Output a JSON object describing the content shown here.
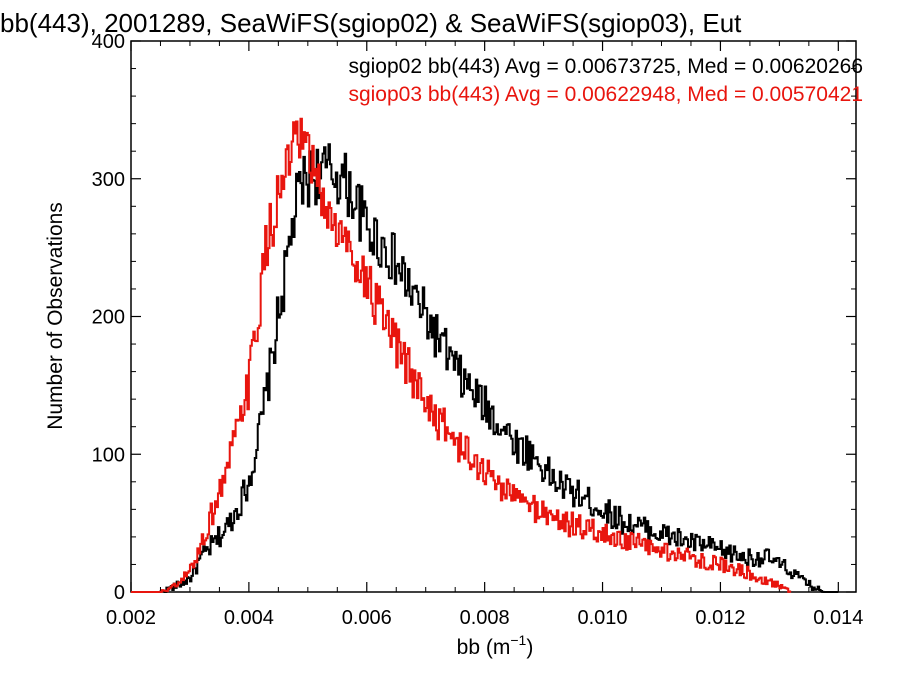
{
  "chart_data": {
    "type": "line",
    "title": "bb(443), 2001289, SeaWiFS(sgiop02) & SeaWiFS(sgiop03), Eut",
    "xlabel_base": "bb (m",
    "xlabel_sup": "−1",
    "xlabel_end": ")",
    "ylabel": "Number of Observations",
    "xlim": [
      0.002,
      0.0143
    ],
    "ylim": [
      0,
      400
    ],
    "x_ticks": [
      "0.002",
      "0.004",
      "0.006",
      "0.008",
      "0.010",
      "0.012",
      "0.014"
    ],
    "y_ticks": [
      "0",
      "100",
      "200",
      "300",
      "400"
    ],
    "grid": false,
    "legend_placement": "top-right",
    "annotations": [
      "sgiop02 bb(443) Avg = 0.00673725, Med = 0.00620266",
      "sgiop03 bb(443) Avg = 0.00622948, Med = 0.00570421"
    ],
    "series": [
      {
        "color": "#000000",
        "x": [
          0.002,
          0.0025,
          0.0028,
          0.003,
          0.0032,
          0.0034,
          0.0036,
          0.0038,
          0.004,
          0.0042,
          0.0044,
          0.0045,
          0.0046,
          0.0047,
          0.0048,
          0.0049,
          0.005,
          0.0052,
          0.0054,
          0.0056,
          0.0058,
          0.006,
          0.0062,
          0.0064,
          0.0066,
          0.0068,
          0.007,
          0.0072,
          0.0074,
          0.0076,
          0.0078,
          0.008,
          0.0082,
          0.0084,
          0.0086,
          0.0088,
          0.009,
          0.0092,
          0.0094,
          0.0096,
          0.0098,
          0.01,
          0.0102,
          0.0104,
          0.0106,
          0.0108,
          0.011,
          0.0112,
          0.0114,
          0.0116,
          0.0118,
          0.012,
          0.0122,
          0.0124,
          0.0126,
          0.0128,
          0.013,
          0.0132,
          0.0134,
          0.0136,
          0.0138,
          0.014
        ],
        "values": [
          0,
          0,
          5,
          10,
          25,
          35,
          45,
          60,
          80,
          120,
          170,
          200,
          225,
          255,
          280,
          295,
          300,
          305,
          305,
          300,
          285,
          265,
          255,
          245,
          230,
          215,
          200,
          185,
          170,
          155,
          145,
          135,
          125,
          115,
          105,
          100,
          90,
          80,
          75,
          70,
          65,
          60,
          55,
          50,
          48,
          45,
          42,
          40,
          37,
          35,
          33,
          30,
          28,
          25,
          25,
          25,
          20,
          15,
          8,
          3,
          0,
          0
        ]
      },
      {
        "color": "#e8150e",
        "x": [
          0.002,
          0.0025,
          0.0028,
          0.003,
          0.0032,
          0.0034,
          0.0036,
          0.0038,
          0.004,
          0.0041,
          0.0042,
          0.0043,
          0.0044,
          0.0045,
          0.0046,
          0.0047,
          0.0048,
          0.0049,
          0.005,
          0.0051,
          0.0052,
          0.0054,
          0.0056,
          0.0058,
          0.006,
          0.0062,
          0.0064,
          0.0066,
          0.0068,
          0.007,
          0.0072,
          0.0074,
          0.0076,
          0.0078,
          0.008,
          0.0082,
          0.0084,
          0.0086,
          0.0088,
          0.009,
          0.0092,
          0.0094,
          0.0096,
          0.0098,
          0.01,
          0.0102,
          0.0104,
          0.0106,
          0.0108,
          0.011,
          0.0112,
          0.0114,
          0.0116,
          0.0118,
          0.012,
          0.0122,
          0.0124,
          0.0126,
          0.0128,
          0.013,
          0.0132
        ],
        "values": [
          0,
          0,
          5,
          15,
          35,
          60,
          85,
          115,
          150,
          185,
          215,
          250,
          270,
          285,
          300,
          315,
          320,
          325,
          315,
          305,
          290,
          270,
          255,
          245,
          225,
          205,
          185,
          170,
          155,
          140,
          125,
          115,
          105,
          95,
          88,
          80,
          73,
          67,
          62,
          58,
          54,
          50,
          47,
          45,
          42,
          40,
          37,
          35,
          32,
          30,
          28,
          26,
          24,
          22,
          20,
          18,
          15,
          12,
          8,
          5,
          0
        ]
      }
    ]
  }
}
